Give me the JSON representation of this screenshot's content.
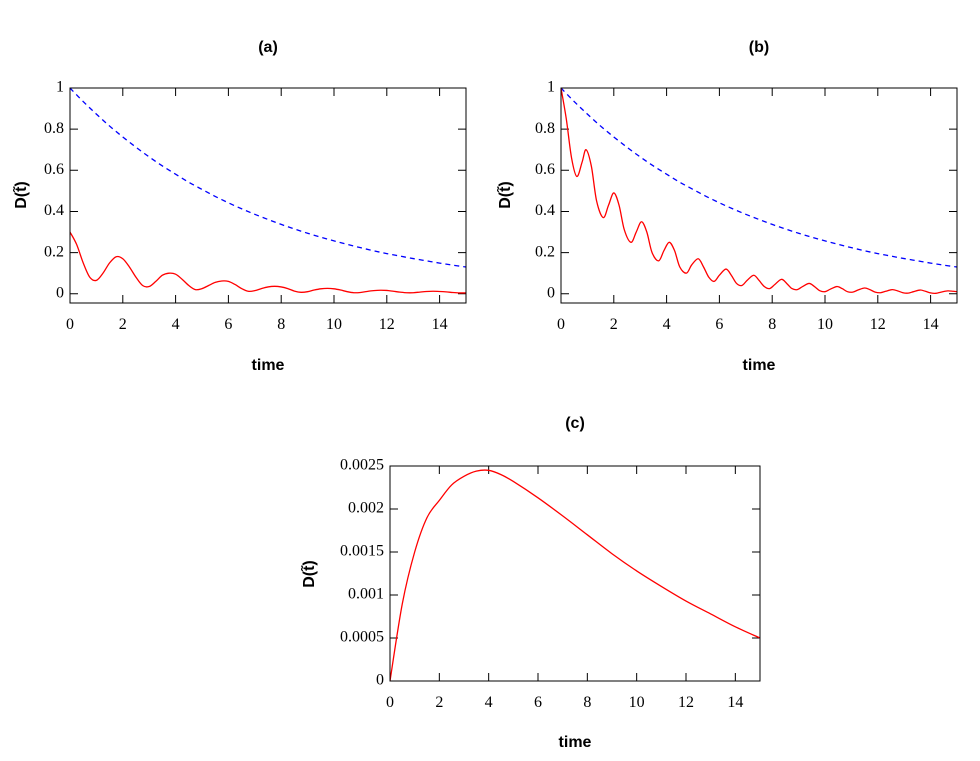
{
  "chart_data": [
    {
      "type": "line",
      "title": "(a)",
      "x_label": "time",
      "y_label": "D(t̃)",
      "xlim": [
        0,
        15
      ],
      "ylim": [
        -0.045,
        1
      ],
      "xticks": [
        0,
        2,
        4,
        6,
        8,
        10,
        12,
        14
      ],
      "yticks": [
        0,
        0.2,
        0.4,
        0.6,
        0.8,
        1
      ],
      "series": [
        {
          "color": "#0000ff",
          "linestyle": "dashed",
          "x": [
            0,
            0.5,
            1,
            1.5,
            2,
            2.5,
            3,
            3.5,
            4,
            4.5,
            5,
            5.5,
            6,
            6.5,
            7,
            7.5,
            8,
            8.5,
            9,
            9.5,
            10,
            10.5,
            11,
            11.5,
            12,
            12.5,
            13,
            13.5,
            14,
            14.5,
            15
          ],
          "values": [
            1,
            0.934,
            0.873,
            0.815,
            0.762,
            0.712,
            0.665,
            0.621,
            0.581,
            0.542,
            0.507,
            0.473,
            0.442,
            0.413,
            0.386,
            0.361,
            0.337,
            0.315,
            0.294,
            0.275,
            0.257,
            0.24,
            0.224,
            0.209,
            0.195,
            0.183,
            0.171,
            0.16,
            0.149,
            0.139,
            0.13
          ]
        },
        {
          "color": "#ff0000",
          "linestyle": "solid",
          "x": [
            0,
            0.25,
            0.5,
            0.75,
            1,
            1.25,
            1.5,
            1.75,
            2,
            2.25,
            2.5,
            2.75,
            3,
            3.25,
            3.5,
            3.75,
            4,
            4.25,
            4.5,
            4.75,
            5,
            5.25,
            5.5,
            5.75,
            6,
            6.25,
            6.5,
            6.75,
            7,
            7.25,
            7.5,
            7.75,
            8,
            8.25,
            8.5,
            8.75,
            9,
            9.25,
            9.5,
            9.75,
            10,
            10.25,
            10.5,
            10.75,
            11,
            11.25,
            11.5,
            11.75,
            12,
            12.25,
            12.5,
            12.75,
            13,
            13.25,
            13.5,
            13.75,
            14,
            14.25,
            14.5,
            14.75,
            15
          ],
          "values": [
            0.3,
            0.24,
            0.15,
            0.08,
            0.065,
            0.1,
            0.15,
            0.18,
            0.17,
            0.13,
            0.08,
            0.04,
            0.035,
            0.06,
            0.09,
            0.1,
            0.095,
            0.07,
            0.04,
            0.02,
            0.025,
            0.04,
            0.055,
            0.062,
            0.06,
            0.045,
            0.025,
            0.012,
            0.015,
            0.025,
            0.033,
            0.036,
            0.033,
            0.025,
            0.013,
            0.007,
            0.01,
            0.018,
            0.024,
            0.026,
            0.024,
            0.018,
            0.01,
            0.005,
            0.006,
            0.011,
            0.015,
            0.017,
            0.016,
            0.012,
            0.008,
            0.005,
            0.005,
            0.008,
            0.011,
            0.012,
            0.011,
            0.009,
            0.006,
            0.004,
            0.004
          ]
        }
      ]
    },
    {
      "type": "line",
      "title": "(b)",
      "x_label": "time",
      "y_label": "D(t̃)",
      "xlim": [
        0,
        15
      ],
      "ylim": [
        -0.045,
        1
      ],
      "xticks": [
        0,
        2,
        4,
        6,
        8,
        10,
        12,
        14
      ],
      "yticks": [
        0,
        0.2,
        0.4,
        0.6,
        0.8,
        1
      ],
      "series": [
        {
          "color": "#0000ff",
          "linestyle": "dashed",
          "x": [
            0,
            0.5,
            1,
            1.5,
            2,
            2.5,
            3,
            3.5,
            4,
            4.5,
            5,
            5.5,
            6,
            6.5,
            7,
            7.5,
            8,
            8.5,
            9,
            9.5,
            10,
            10.5,
            11,
            11.5,
            12,
            12.5,
            13,
            13.5,
            14,
            14.5,
            15
          ],
          "values": [
            1,
            0.934,
            0.873,
            0.815,
            0.762,
            0.712,
            0.665,
            0.621,
            0.581,
            0.542,
            0.507,
            0.473,
            0.442,
            0.413,
            0.386,
            0.361,
            0.337,
            0.315,
            0.294,
            0.275,
            0.257,
            0.24,
            0.224,
            0.209,
            0.195,
            0.183,
            0.171,
            0.16,
            0.149,
            0.139,
            0.13
          ]
        },
        {
          "color": "#ff0000",
          "linestyle": "solid",
          "x": [
            0,
            0.2,
            0.4,
            0.6,
            0.8,
            0.95,
            1.15,
            1.35,
            1.6,
            1.8,
            2.0,
            2.2,
            2.4,
            2.65,
            2.85,
            3.05,
            3.25,
            3.45,
            3.7,
            3.9,
            4.1,
            4.3,
            4.5,
            4.75,
            4.95,
            5.2,
            5.4,
            5.6,
            5.8,
            6.0,
            6.25,
            6.45,
            6.65,
            6.85,
            7.05,
            7.3,
            7.5,
            7.7,
            7.9,
            8.1,
            8.35,
            8.55,
            8.75,
            8.95,
            9.15,
            9.4,
            9.6,
            9.8,
            10,
            10.2,
            10.45,
            10.65,
            10.85,
            11.05,
            11.25,
            11.5,
            11.7,
            11.9,
            12.1,
            12.3,
            12.55,
            12.75,
            12.95,
            13.15,
            13.35,
            13.6,
            13.8,
            14.0,
            14.2,
            14.4,
            14.65,
            14.85,
            15
          ],
          "values": [
            1,
            0.85,
            0.66,
            0.57,
            0.64,
            0.7,
            0.62,
            0.45,
            0.37,
            0.43,
            0.49,
            0.43,
            0.31,
            0.25,
            0.3,
            0.35,
            0.3,
            0.2,
            0.16,
            0.21,
            0.25,
            0.21,
            0.13,
            0.1,
            0.14,
            0.17,
            0.13,
            0.08,
            0.06,
            0.09,
            0.12,
            0.09,
            0.05,
            0.04,
            0.065,
            0.09,
            0.065,
            0.035,
            0.025,
            0.045,
            0.07,
            0.05,
            0.025,
            0.02,
            0.035,
            0.05,
            0.035,
            0.015,
            0.01,
            0.022,
            0.035,
            0.025,
            0.01,
            0.008,
            0.018,
            0.028,
            0.02,
            0.008,
            0.005,
            0.012,
            0.02,
            0.014,
            0.005,
            0.003,
            0.01,
            0.018,
            0.012,
            0.004,
            0.002,
            0.008,
            0.014,
            0.012,
            0.01
          ]
        }
      ]
    },
    {
      "type": "line",
      "title": "(c)",
      "x_label": "time",
      "y_label": "D(t̃)",
      "xlim": [
        0,
        15
      ],
      "ylim": [
        0,
        0.0025
      ],
      "xticks": [
        0,
        2,
        4,
        6,
        8,
        10,
        12,
        14
      ],
      "yticks": [
        0,
        0.0005,
        0.001,
        0.0015,
        0.002,
        0.0025
      ],
      "series": [
        {
          "color": "#ff0000",
          "linestyle": "solid",
          "x": [
            0,
            0.5,
            1,
            1.5,
            2,
            2.5,
            3,
            3.5,
            4,
            4.5,
            5,
            6,
            7,
            8,
            9,
            10,
            11,
            12,
            13,
            14,
            15
          ],
          "values": [
            0,
            0.0009,
            0.0015,
            0.0019,
            0.0021,
            0.00228,
            0.00238,
            0.00244,
            0.00245,
            0.0024,
            0.00232,
            0.00213,
            0.00192,
            0.0017,
            0.00148,
            0.00128,
            0.0011,
            0.00093,
            0.00078,
            0.00063,
            0.0005
          ]
        }
      ]
    }
  ]
}
